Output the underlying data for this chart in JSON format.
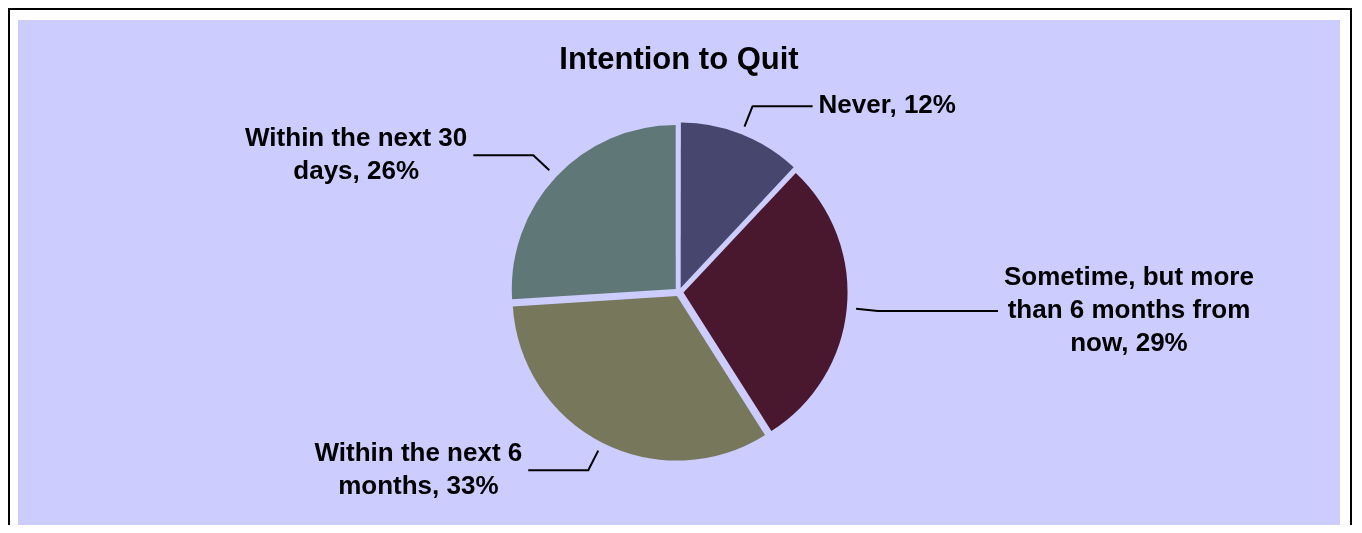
{
  "chart_data": {
    "type": "pie",
    "title": "Intention to Quit",
    "categories": [
      "Never",
      "Sometime, but more than 6 months from now",
      "Within the next 6 months",
      "Within the next 30 days"
    ],
    "values": [
      12,
      29,
      33,
      26
    ],
    "colors": [
      "#46466f",
      "#4a182e",
      "#77775b",
      "#5f7776"
    ],
    "value_labels": [
      "12%",
      "29%",
      "33%",
      "26%"
    ]
  }
}
